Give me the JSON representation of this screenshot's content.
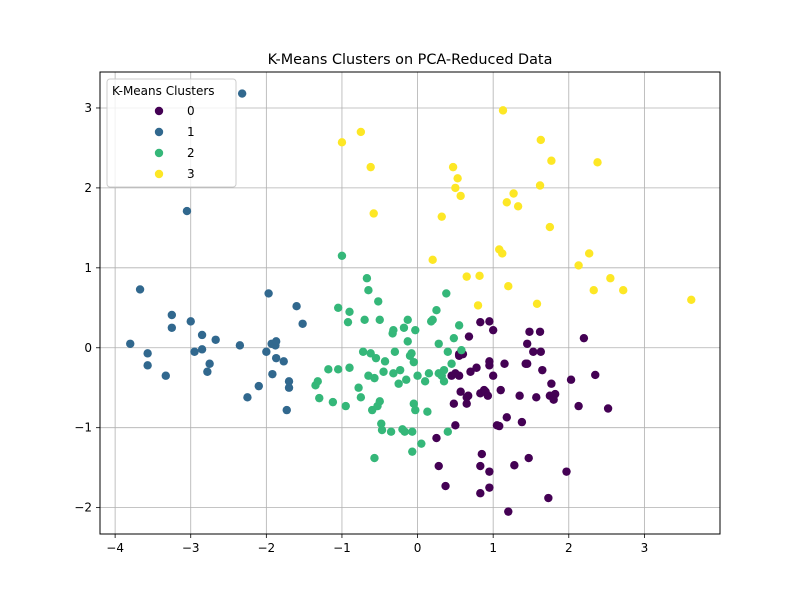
{
  "chart_data": {
    "type": "scatter",
    "title": "K-Means Clusters on PCA-Reduced Data",
    "xlabel": "",
    "ylabel": "",
    "xlim": [
      -4.2,
      4.0
    ],
    "ylim": [
      -2.33,
      3.45
    ],
    "xticks": [
      -4,
      -3,
      -2,
      -1,
      0,
      1,
      2,
      3
    ],
    "yticks": [
      -2,
      -1,
      0,
      1,
      2,
      3
    ],
    "grid": true,
    "legend": {
      "title": "K-Means Clusters",
      "position": "top-left"
    },
    "series": [
      {
        "name": "0",
        "color": "#440154",
        "points": [
          [
            0.25,
            -1.13
          ],
          [
            0.28,
            -1.48
          ],
          [
            0.37,
            -1.73
          ],
          [
            0.48,
            -0.7
          ],
          [
            0.5,
            -0.97
          ],
          [
            0.55,
            -0.35
          ],
          [
            0.55,
            -0.1
          ],
          [
            0.57,
            -0.55
          ],
          [
            0.6,
            -0.08
          ],
          [
            0.65,
            -0.7
          ],
          [
            0.67,
            -0.6
          ],
          [
            0.68,
            0.14
          ],
          [
            0.7,
            -0.3
          ],
          [
            0.78,
            -0.25
          ],
          [
            0.83,
            0.32
          ],
          [
            0.83,
            -0.57
          ],
          [
            0.83,
            -1.48
          ],
          [
            0.83,
            -1.82
          ],
          [
            0.85,
            -1.33
          ],
          [
            0.88,
            -0.53
          ],
          [
            0.9,
            -0.55
          ],
          [
            0.93,
            -0.6
          ],
          [
            0.95,
            -0.17
          ],
          [
            0.95,
            -0.22
          ],
          [
            0.95,
            -1.55
          ],
          [
            0.95,
            -1.75
          ],
          [
            0.95,
            0.33
          ],
          [
            1.0,
            -0.35
          ],
          [
            1.0,
            0.22
          ],
          [
            1.05,
            -0.97
          ],
          [
            1.08,
            -0.98
          ],
          [
            1.1,
            -0.53
          ],
          [
            1.15,
            -0.2
          ],
          [
            1.18,
            -0.87
          ],
          [
            1.2,
            -2.05
          ],
          [
            1.28,
            -1.47
          ],
          [
            1.35,
            -0.6
          ],
          [
            1.38,
            -0.93
          ],
          [
            1.43,
            -0.2
          ],
          [
            1.45,
            -0.2
          ],
          [
            1.45,
            0.05
          ],
          [
            1.47,
            -1.38
          ],
          [
            1.48,
            0.2
          ],
          [
            1.53,
            -0.05
          ],
          [
            1.57,
            -0.62
          ],
          [
            1.62,
            0.2
          ],
          [
            1.63,
            -0.05
          ],
          [
            1.65,
            -0.28
          ],
          [
            1.73,
            -1.88
          ],
          [
            1.75,
            -0.6
          ],
          [
            1.77,
            -0.45
          ],
          [
            1.8,
            -0.65
          ],
          [
            1.82,
            -0.58
          ],
          [
            1.97,
            -1.55
          ],
          [
            2.03,
            -0.4
          ],
          [
            2.13,
            -0.73
          ],
          [
            2.2,
            0.12
          ],
          [
            2.35,
            -0.34
          ],
          [
            2.52,
            -0.76
          ],
          [
            0.45,
            -0.35
          ],
          [
            0.5,
            -0.32
          ],
          [
            0.55,
            -0.08
          ],
          [
            0.65,
            -0.62
          ]
        ]
      },
      {
        "name": "1",
        "color": "#31688e",
        "points": [
          [
            -3.8,
            0.05
          ],
          [
            -3.67,
            0.73
          ],
          [
            -3.57,
            -0.07
          ],
          [
            -3.57,
            -0.22
          ],
          [
            -3.33,
            -0.35
          ],
          [
            -3.25,
            0.41
          ],
          [
            -3.25,
            0.25
          ],
          [
            -3.05,
            1.71
          ],
          [
            -3.0,
            0.33
          ],
          [
            -2.95,
            -0.05
          ],
          [
            -2.85,
            -0.02
          ],
          [
            -2.85,
            0.16
          ],
          [
            -2.78,
            -0.3
          ],
          [
            -2.75,
            -0.2
          ],
          [
            -2.67,
            0.1
          ],
          [
            -2.35,
            0.03
          ],
          [
            -2.32,
            3.18
          ],
          [
            -2.25,
            -0.62
          ],
          [
            -2.1,
            -0.48
          ],
          [
            -2.0,
            -0.05
          ],
          [
            -1.97,
            0.68
          ],
          [
            -1.93,
            0.05
          ],
          [
            -1.92,
            -0.33
          ],
          [
            -1.88,
            0.03
          ],
          [
            -1.87,
            0.08
          ],
          [
            -1.87,
            -0.13
          ],
          [
            -1.77,
            -0.17
          ],
          [
            -1.73,
            -0.78
          ],
          [
            -1.7,
            -0.42
          ],
          [
            -1.7,
            -0.5
          ],
          [
            -1.6,
            0.52
          ],
          [
            -1.52,
            0.3
          ]
        ]
      },
      {
        "name": "2",
        "color": "#35b779",
        "points": [
          [
            -1.35,
            -0.47
          ],
          [
            -1.32,
            -0.42
          ],
          [
            -1.3,
            -0.63
          ],
          [
            -1.18,
            -0.27
          ],
          [
            -1.12,
            -0.68
          ],
          [
            -1.05,
            -0.27
          ],
          [
            -1.05,
            0.5
          ],
          [
            -1.0,
            1.15
          ],
          [
            -0.95,
            -0.73
          ],
          [
            -0.92,
            0.32
          ],
          [
            -0.9,
            0.45
          ],
          [
            -0.9,
            -0.25
          ],
          [
            -0.78,
            -0.5
          ],
          [
            -0.75,
            -0.62
          ],
          [
            -0.72,
            -0.05
          ],
          [
            -0.7,
            0.35
          ],
          [
            -0.67,
            0.87
          ],
          [
            -0.65,
            0.72
          ],
          [
            -0.65,
            -0.35
          ],
          [
            -0.62,
            -0.07
          ],
          [
            -0.6,
            -0.78
          ],
          [
            -0.57,
            -1.38
          ],
          [
            -0.57,
            -0.38
          ],
          [
            -0.55,
            -0.13
          ],
          [
            -0.53,
            -0.73
          ],
          [
            -0.52,
            0.58
          ],
          [
            -0.5,
            0.35
          ],
          [
            -0.5,
            -0.67
          ],
          [
            -0.48,
            -0.95
          ],
          [
            -0.47,
            -1.03
          ],
          [
            -0.45,
            -0.3
          ],
          [
            -0.43,
            -0.17
          ],
          [
            -0.35,
            -1.05
          ],
          [
            -0.33,
            0.18
          ],
          [
            -0.32,
            0.22
          ],
          [
            -0.32,
            -0.32
          ],
          [
            -0.3,
            -0.05
          ],
          [
            -0.25,
            -0.45
          ],
          [
            -0.23,
            -0.28
          ],
          [
            -0.2,
            -1.02
          ],
          [
            -0.18,
            0.25
          ],
          [
            -0.17,
            -1.05
          ],
          [
            -0.15,
            -0.4
          ],
          [
            -0.13,
            0.35
          ],
          [
            -0.13,
            0.08
          ],
          [
            -0.1,
            -0.1
          ],
          [
            -0.08,
            -0.07
          ],
          [
            -0.07,
            -1.05
          ],
          [
            -0.07,
            -1.3
          ],
          [
            -0.05,
            -0.18
          ],
          [
            -0.05,
            -0.7
          ],
          [
            -0.03,
            0.22
          ],
          [
            -0.03,
            -0.78
          ],
          [
            0.0,
            -0.35
          ],
          [
            0.05,
            -1.2
          ],
          [
            0.1,
            -0.42
          ],
          [
            0.13,
            -0.8
          ],
          [
            0.15,
            -0.32
          ],
          [
            0.18,
            0.33
          ],
          [
            0.2,
            0.35
          ],
          [
            0.25,
            0.47
          ],
          [
            0.28,
            0.05
          ],
          [
            0.28,
            -0.32
          ],
          [
            0.32,
            -0.35
          ],
          [
            0.35,
            -0.42
          ],
          [
            0.35,
            -0.28
          ],
          [
            0.38,
            0.68
          ],
          [
            0.4,
            -0.05
          ],
          [
            0.4,
            -1.05
          ],
          [
            0.45,
            -0.2
          ],
          [
            0.48,
            0.12
          ],
          [
            0.55,
            0.28
          ],
          [
            0.58,
            -0.03
          ]
        ]
      },
      {
        "name": "3",
        "color": "#fde725",
        "points": [
          [
            -1.0,
            2.57
          ],
          [
            -0.75,
            2.7
          ],
          [
            -0.62,
            2.26
          ],
          [
            -0.58,
            1.68
          ],
          [
            0.2,
            1.1
          ],
          [
            0.32,
            1.64
          ],
          [
            0.47,
            2.26
          ],
          [
            0.5,
            2.0
          ],
          [
            0.53,
            2.12
          ],
          [
            0.57,
            1.9
          ],
          [
            0.65,
            0.89
          ],
          [
            0.8,
            0.53
          ],
          [
            0.82,
            0.9
          ],
          [
            1.08,
            1.23
          ],
          [
            1.12,
            1.18
          ],
          [
            1.13,
            2.97
          ],
          [
            1.18,
            1.82
          ],
          [
            1.2,
            0.77
          ],
          [
            1.27,
            1.93
          ],
          [
            1.33,
            1.77
          ],
          [
            1.58,
            0.55
          ],
          [
            1.62,
            2.03
          ],
          [
            1.63,
            2.6
          ],
          [
            1.75,
            1.51
          ],
          [
            1.77,
            2.34
          ],
          [
            2.13,
            1.03
          ],
          [
            2.27,
            1.18
          ],
          [
            2.33,
            0.72
          ],
          [
            2.38,
            2.32
          ],
          [
            2.55,
            0.87
          ],
          [
            2.72,
            0.72
          ],
          [
            3.62,
            0.6
          ]
        ]
      }
    ]
  }
}
